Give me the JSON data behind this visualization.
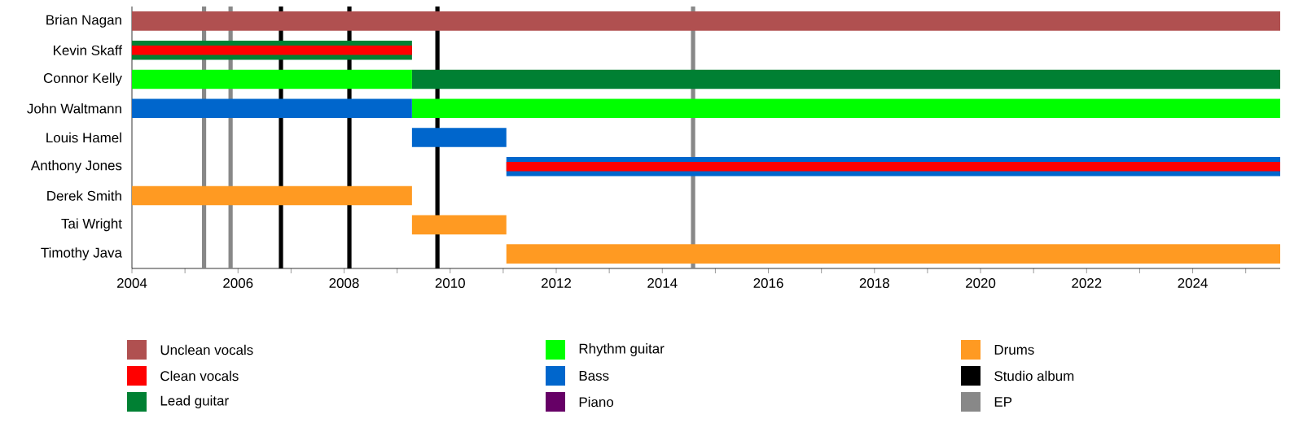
{
  "chart_data": {
    "type": "bar",
    "orientation": "horizontal",
    "legend": "bottom",
    "categories": [
      "Brian Nagan",
      "Kevin Skaff",
      "Connor Kelly",
      "John Waltmann",
      "Louis Hamel",
      "Anthony Jones",
      "Derek Smith",
      "Tai Wright",
      "Timothy Java"
    ],
    "series": [
      {
        "name": "Unclean vocals",
        "color": "#b05050",
        "base": [
          2004,
          null,
          null,
          null,
          null,
          null,
          null,
          null,
          null
        ],
        "values": [
          21.65,
          null,
          null,
          null,
          null,
          null,
          null,
          null,
          null
        ]
      },
      {
        "name": "Clean vocals",
        "color": "#ff0000",
        "base": [
          null,
          2004,
          null,
          null,
          null,
          2011.06,
          null,
          null,
          null
        ],
        "values": [
          null,
          5.28,
          null,
          null,
          null,
          14.59,
          null,
          null,
          null
        ]
      },
      {
        "name": "Lead guitar",
        "color": "#008033",
        "base": [
          null,
          2004,
          2009.28,
          null,
          null,
          null,
          null,
          null,
          null
        ],
        "values": [
          null,
          5.28,
          16.37,
          null,
          null,
          null,
          null,
          null,
          null
        ]
      },
      {
        "name": "Rhythm guitar",
        "color": "#00ff00",
        "base": [
          null,
          null,
          2004,
          2009.28,
          null,
          null,
          null,
          null,
          null
        ],
        "values": [
          null,
          null,
          5.28,
          16.37,
          null,
          null,
          null,
          null,
          null
        ]
      },
      {
        "name": "Bass",
        "color": "#0066cc",
        "base": [
          null,
          null,
          null,
          2004,
          2009.28,
          2011.06,
          null,
          null,
          null
        ],
        "values": [
          null,
          null,
          null,
          5.28,
          1.78,
          14.59,
          null,
          null,
          null
        ]
      },
      {
        "name": "Piano",
        "color": "#660066",
        "base": [
          null,
          null,
          null,
          null,
          null,
          null,
          null,
          null,
          null
        ],
        "values": [
          null,
          null,
          null,
          null,
          null,
          null,
          null,
          null,
          null
        ]
      },
      {
        "name": "Drums",
        "color": "#ff9a22",
        "base": [
          null,
          null,
          null,
          null,
          null,
          null,
          2004,
          2009.28,
          2011.06
        ],
        "values": [
          null,
          null,
          null,
          null,
          null,
          null,
          5.28,
          1.78,
          14.59
        ]
      }
    ],
    "ref_lines": [
      {
        "axis": "x",
        "value": 2006.81,
        "label": "Studio album",
        "color": "#000000"
      },
      {
        "axis": "x",
        "value": 2008.1,
        "color": "#000000"
      },
      {
        "axis": "x",
        "value": 2009.76,
        "color": "#000000"
      },
      {
        "axis": "x",
        "value": 2005.36,
        "label": "EP",
        "color": "#888888"
      },
      {
        "axis": "x",
        "value": 2005.86,
        "color": "#888888"
      },
      {
        "axis": "x",
        "value": 2014.58,
        "color": "#888888"
      }
    ],
    "xlim": [
      2004,
      2025.65
    ],
    "xticks": [
      2004,
      {
        "value": 2005,
        "label": null
      },
      2006,
      {
        "value": 2007,
        "label": null
      },
      2008,
      {
        "value": 2009,
        "label": null
      },
      2010,
      {
        "value": 2011,
        "label": null
      },
      2012,
      {
        "value": 2013,
        "label": null
      },
      2014,
      {
        "value": 2015,
        "label": null
      },
      2016,
      {
        "value": 2017,
        "label": null
      },
      2018,
      {
        "value": 2019,
        "label": null
      },
      2020,
      {
        "value": 2021,
        "label": null
      },
      2022,
      {
        "value": 2023,
        "label": null
      },
      2024,
      {
        "value": 2025,
        "label": null
      }
    ]
  }
}
